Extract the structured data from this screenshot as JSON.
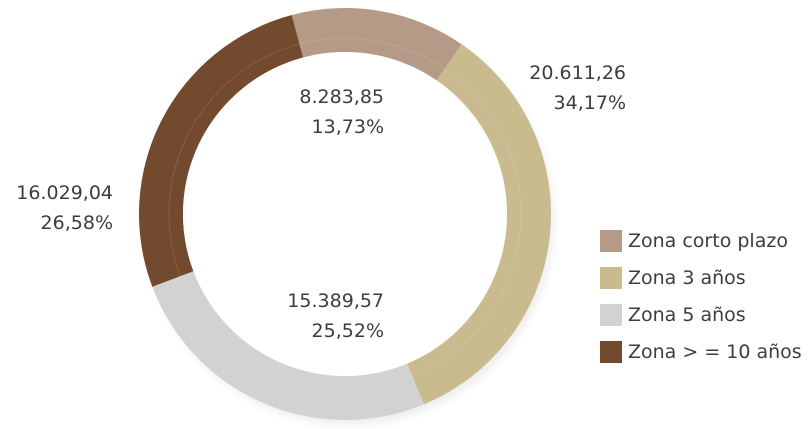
{
  "chart_data": {
    "type": "pie",
    "variant": "donut",
    "categories": [
      "Zona corto plazo",
      "Zona 3 años",
      "Zona 5 años",
      "Zona > = 10 años"
    ],
    "values": [
      8283.85,
      20611.26,
      15389.57,
      16029.04
    ],
    "value_labels": [
      "8.283,85",
      "20.611,26",
      "15.389,57",
      "16.029,04"
    ],
    "percent_labels": [
      "13,73%",
      "34,17%",
      "25,52%",
      "26,58%"
    ],
    "colors": [
      "#b69a88",
      "#c9bb8d",
      "#d2d2d2",
      "#744a2e"
    ],
    "legend_position": "right"
  },
  "legend": {
    "items": [
      {
        "label": "Zona corto plazo",
        "color": "#b69a88"
      },
      {
        "label": "Zona 3 años",
        "color": "#c9bb8d"
      },
      {
        "label": "Zona 5 años",
        "color": "#d2d2d2"
      },
      {
        "label": "Zona > = 10 años",
        "color": "#744a2e"
      }
    ]
  }
}
